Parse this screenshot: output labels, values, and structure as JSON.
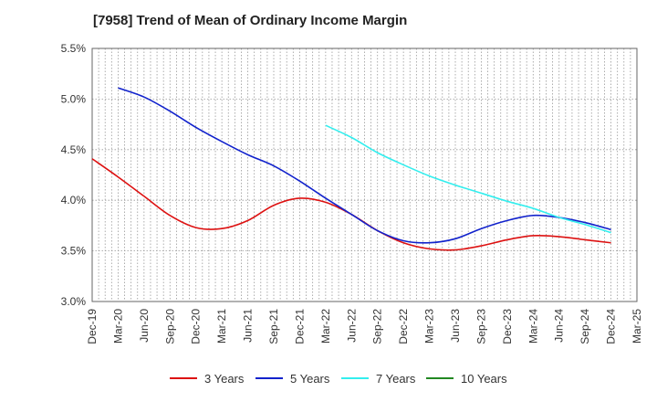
{
  "chart_data": {
    "type": "line",
    "title": "[7958]  Trend of Mean of Ordinary Income Margin",
    "xlabel": "",
    "ylabel": "",
    "categories": [
      "Dec-19",
      "Mar-20",
      "Jun-20",
      "Sep-20",
      "Dec-20",
      "Mar-21",
      "Jun-21",
      "Sep-21",
      "Dec-21",
      "Mar-22",
      "Jun-22",
      "Sep-22",
      "Dec-22",
      "Mar-23",
      "Jun-23",
      "Sep-23",
      "Dec-23",
      "Mar-24",
      "Jun-24",
      "Sep-24",
      "Dec-24",
      "Mar-25"
    ],
    "y_ticks": [
      "5.5%",
      "5.0%",
      "4.5%",
      "4.0%",
      "3.5%",
      "3.0%"
    ],
    "ylim": [
      3.0,
      5.5
    ],
    "grid": true,
    "legend_position": "bottom",
    "series": [
      {
        "name": "3 Years",
        "color": "#dd1111",
        "values": [
          4.41,
          4.23,
          4.04,
          3.85,
          3.73,
          3.72,
          3.8,
          3.95,
          4.02,
          3.98,
          3.86,
          3.7,
          3.58,
          3.52,
          3.51,
          3.55,
          3.61,
          3.65,
          3.64,
          3.61,
          3.58,
          null
        ]
      },
      {
        "name": "5 Years",
        "color": "#1122cc",
        "values": [
          null,
          5.11,
          5.02,
          4.88,
          4.72,
          4.58,
          4.45,
          4.34,
          4.19,
          4.02,
          3.86,
          3.7,
          3.6,
          3.58,
          3.62,
          3.72,
          3.8,
          3.85,
          3.83,
          3.78,
          3.71,
          null
        ]
      },
      {
        "name": "7 Years",
        "color": "#33eeee",
        "values": [
          null,
          null,
          null,
          null,
          null,
          null,
          null,
          null,
          null,
          4.74,
          4.62,
          4.47,
          4.35,
          4.24,
          4.15,
          4.07,
          3.99,
          3.92,
          3.83,
          3.76,
          3.68,
          null
        ]
      },
      {
        "name": "10 Years",
        "color": "#228822",
        "values": [
          null,
          null,
          null,
          null,
          null,
          null,
          null,
          null,
          null,
          null,
          null,
          null,
          null,
          null,
          null,
          null,
          null,
          null,
          null,
          null,
          null,
          null
        ]
      }
    ]
  }
}
